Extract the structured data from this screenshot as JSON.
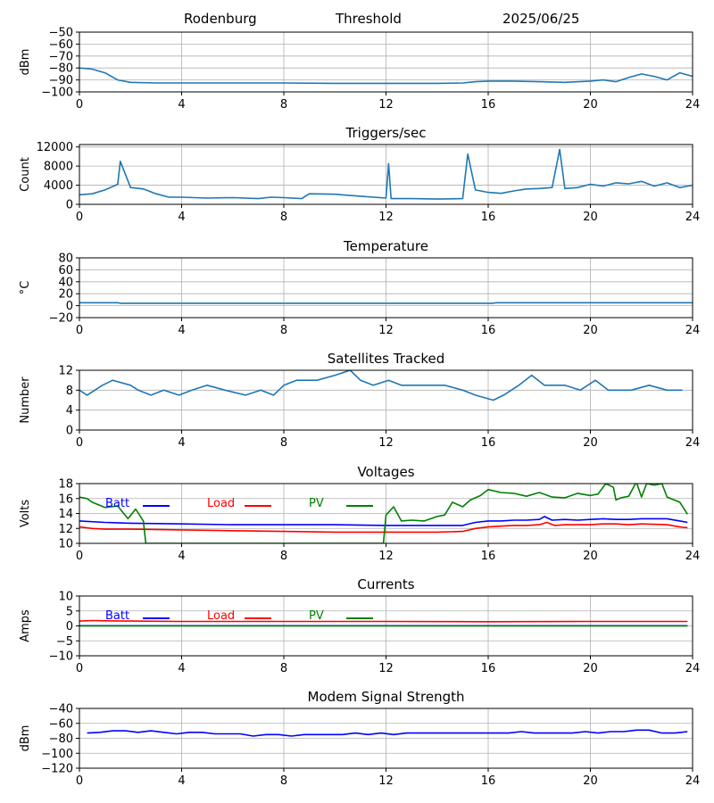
{
  "header": {
    "site": "Rodenburg",
    "mode": "Threshold",
    "date": "2025/06/25"
  },
  "colors": {
    "blue": "#1f77b4",
    "batt": "#0000ff",
    "load": "#ff0000",
    "pv": "#008000",
    "grid": "#b0b0b0"
  },
  "chart_data": [
    {
      "type": "line",
      "title": "",
      "xlabel": "",
      "ylabel": "dBm",
      "xlim": [
        0,
        24
      ],
      "xticks": [
        0,
        4,
        8,
        12,
        16,
        20,
        24
      ],
      "ylim": [
        -100,
        -50
      ],
      "yticks": [
        -100,
        -90,
        -80,
        -70,
        -60,
        -50
      ],
      "grid": true,
      "series": [
        {
          "color": "#1f77b4",
          "x": [
            0,
            0.5,
            1,
            1.5,
            2,
            3,
            4,
            6,
            8,
            10,
            12,
            14,
            15,
            15.5,
            16,
            17,
            18,
            19,
            20,
            20.5,
            21,
            21.5,
            22,
            22.5,
            23,
            23.5,
            24
          ],
          "y": [
            -80,
            -81,
            -84,
            -90,
            -92,
            -92.5,
            -92.5,
            -92.5,
            -92.5,
            -92.8,
            -92.8,
            -92.8,
            -92.5,
            -91.5,
            -91,
            -91,
            -91.5,
            -92,
            -91,
            -90,
            -91.5,
            -88,
            -85,
            -87,
            -90,
            -84,
            -87
          ]
        }
      ]
    },
    {
      "type": "line",
      "title": "Triggers/sec",
      "xlabel": "",
      "ylabel": "Count",
      "xlim": [
        0,
        24
      ],
      "xticks": [
        0,
        4,
        8,
        12,
        16,
        20,
        24
      ],
      "ylim": [
        0,
        12500
      ],
      "yticks": [
        0,
        4000,
        8000,
        12000
      ],
      "grid": true,
      "series": [
        {
          "color": "#1f77b4",
          "x": [
            0,
            0.5,
            1,
            1.5,
            1.6,
            2,
            2.5,
            3,
            3.5,
            4,
            5,
            6,
            7,
            7.5,
            8,
            8.7,
            9,
            10,
            11,
            12,
            12.1,
            12.2,
            13,
            14,
            15,
            15.2,
            15.5,
            16,
            16.5,
            17,
            17.5,
            18,
            18.5,
            18.8,
            19,
            19.5,
            20,
            20.5,
            21,
            21.5,
            22,
            22.5,
            23,
            23.5,
            24
          ],
          "y": [
            2000,
            2200,
            3000,
            4200,
            9000,
            3500,
            3200,
            2200,
            1500,
            1500,
            1300,
            1400,
            1200,
            1500,
            1400,
            1200,
            2200,
            2100,
            1700,
            1300,
            8500,
            1200,
            1200,
            1100,
            1200,
            10500,
            3000,
            2500,
            2300,
            2800,
            3200,
            3300,
            3500,
            11500,
            3300,
            3500,
            4200,
            3800,
            4500,
            4300,
            4800,
            3800,
            4500,
            3500,
            4000
          ]
        }
      ]
    },
    {
      "type": "line",
      "title": "Temperature",
      "xlabel": "",
      "ylabel": "°C",
      "xlim": [
        0,
        24
      ],
      "xticks": [
        0,
        4,
        8,
        12,
        16,
        20,
        24
      ],
      "ylim": [
        -20,
        80
      ],
      "yticks": [
        -20,
        0,
        20,
        40,
        60,
        80
      ],
      "grid": true,
      "series": [
        {
          "color": "#1f77b4",
          "x": [
            0,
            1.5,
            1.6,
            16.2,
            16.3,
            24
          ],
          "y": [
            5,
            5,
            4,
            4,
            5,
            5
          ]
        }
      ]
    },
    {
      "type": "line",
      "title": "Satellites Tracked",
      "xlabel": "",
      "ylabel": "Number",
      "xlim": [
        0,
        24
      ],
      "xticks": [
        0,
        4,
        8,
        12,
        16,
        20,
        24
      ],
      "ylim": [
        0,
        12
      ],
      "yticks": [
        0,
        4,
        8,
        12
      ],
      "grid": true,
      "series": [
        {
          "color": "#1f77b4",
          "x": [
            0,
            0.3,
            0.6,
            0.9,
            1.3,
            2.0,
            2.3,
            2.8,
            3.3,
            3.9,
            4.4,
            5.0,
            5.7,
            6.5,
            7.1,
            7.6,
            8.0,
            8.5,
            9.3,
            10.0,
            10.6,
            11.0,
            11.5,
            12.1,
            12.6,
            13.1,
            14.3,
            15.0,
            15.5,
            16.2,
            16.6,
            17.2,
            17.7,
            18.2,
            19.0,
            19.6,
            20.2,
            20.7,
            21.6,
            22.3,
            23.0,
            23.6
          ],
          "y": [
            8,
            7,
            8,
            9,
            10,
            9,
            8,
            7,
            8,
            7,
            8,
            9,
            8,
            7,
            8,
            7,
            9,
            10,
            10,
            11,
            12,
            10,
            9,
            10,
            9,
            9,
            9,
            8,
            7,
            6,
            7,
            9,
            11,
            9,
            9,
            8,
            10,
            8,
            8,
            9,
            8,
            8
          ]
        }
      ]
    },
    {
      "type": "line",
      "title": "Voltages",
      "xlabel": "",
      "ylabel": "Volts",
      "xlim": [
        0,
        24
      ],
      "xticks": [
        0,
        4,
        8,
        12,
        16,
        20,
        24
      ],
      "ylim": [
        10,
        18
      ],
      "yticks": [
        10,
        12,
        14,
        16,
        18
      ],
      "grid": true,
      "legend": "top-left",
      "series": [
        {
          "name": "Batt",
          "color": "#0000ff",
          "x": [
            0,
            1,
            2,
            4,
            6,
            8,
            10,
            12,
            13,
            14,
            15,
            15.5,
            16,
            16.5,
            17,
            17.5,
            18,
            18.2,
            18.5,
            19,
            19.5,
            20,
            20.5,
            21,
            21.5,
            22,
            22.5,
            23,
            23.5,
            23.8
          ],
          "y": [
            13,
            12.8,
            12.7,
            12.6,
            12.5,
            12.5,
            12.5,
            12.4,
            12.4,
            12.4,
            12.4,
            12.8,
            13,
            13,
            13.1,
            13.1,
            13.2,
            13.6,
            13.1,
            13.2,
            13.1,
            13.2,
            13.3,
            13.2,
            13.2,
            13.3,
            13.3,
            13.3,
            13,
            12.8
          ]
        },
        {
          "name": "Load",
          "color": "#ff0000",
          "x": [
            0,
            0.5,
            1,
            2,
            4,
            6,
            8,
            10,
            12,
            13,
            14,
            15,
            15.5,
            16,
            16.5,
            17,
            17.5,
            18,
            18.3,
            18.6,
            19,
            20,
            20.5,
            21,
            21.5,
            22,
            23,
            23.5,
            23.8
          ],
          "y": [
            12.2,
            12,
            11.9,
            11.9,
            11.8,
            11.7,
            11.6,
            11.5,
            11.5,
            11.5,
            11.5,
            11.6,
            12,
            12.2,
            12.3,
            12.4,
            12.4,
            12.5,
            12.8,
            12.4,
            12.5,
            12.5,
            12.6,
            12.6,
            12.5,
            12.6,
            12.5,
            12.2,
            12.1
          ]
        },
        {
          "name": "PV",
          "color": "#008000",
          "x": [
            0,
            0.3,
            0.5,
            1.0,
            1.5,
            1.9,
            2.2,
            2.5,
            2.6,
            11.9,
            12.0,
            12.3,
            12.6,
            13.0,
            13.5,
            14.0,
            14.3,
            14.6,
            15.0,
            15.3,
            15.7,
            16.0,
            16.5,
            17.0,
            17.5,
            18.0,
            18.5,
            19.0,
            19.5,
            20.0,
            20.3,
            20.6,
            20.9,
            21.0,
            21.2,
            21.5,
            21.8,
            22.0,
            22.2,
            22.5,
            22.8,
            23.0,
            23.5,
            23.8
          ],
          "y": [
            16.2,
            16,
            15.5,
            14.8,
            15,
            13.3,
            14.6,
            13,
            10,
            10,
            13.8,
            14.9,
            13,
            13.1,
            13,
            13.6,
            13.8,
            15.5,
            14.9,
            15.8,
            16.4,
            17.2,
            16.8,
            16.7,
            16.3,
            16.8,
            16.2,
            16.1,
            16.7,
            16.4,
            16.6,
            18,
            17.5,
            15.8,
            16.1,
            16.3,
            18.2,
            16.2,
            18,
            17.8,
            18,
            16.2,
            15.5,
            13.9
          ]
        }
      ]
    },
    {
      "type": "line",
      "title": "Currents",
      "xlabel": "",
      "ylabel": "Amps",
      "xlim": [
        0,
        24
      ],
      "xticks": [
        0,
        4,
        8,
        12,
        16,
        20,
        24
      ],
      "ylim": [
        -10,
        10
      ],
      "yticks": [
        -10,
        -5,
        0,
        5,
        10
      ],
      "grid": true,
      "legend": "top-left",
      "series": [
        {
          "name": "Batt",
          "color": "#0000ff",
          "x": [
            0,
            23.8
          ],
          "y": [
            0.05,
            0.05
          ]
        },
        {
          "name": "Load",
          "color": "#ff0000",
          "x": [
            0,
            0.5,
            1,
            2,
            4,
            8,
            12,
            16,
            20,
            23.8
          ],
          "y": [
            1.6,
            1.8,
            1.7,
            1.6,
            1.5,
            1.5,
            1.5,
            1.4,
            1.5,
            1.5
          ]
        },
        {
          "name": "PV",
          "color": "#008000",
          "x": [
            0,
            23.8
          ],
          "y": [
            0,
            0
          ]
        }
      ]
    },
    {
      "type": "line",
      "title": "Modem Signal Strength",
      "xlabel": "",
      "ylabel": "dBm",
      "xlim": [
        0,
        24
      ],
      "xticks": [
        0,
        4,
        8,
        12,
        16,
        20,
        24
      ],
      "ylim": [
        -120,
        -40
      ],
      "yticks": [
        -120,
        -100,
        -80,
        -60,
        -40
      ],
      "grid": true,
      "series": [
        {
          "color": "#0000ff",
          "x": [
            0.3,
            0.8,
            1.3,
            1.8,
            2.3,
            2.8,
            3.3,
            3.8,
            4.3,
            4.8,
            5.3,
            5.8,
            6.3,
            6.8,
            7.3,
            7.8,
            8.3,
            8.8,
            9.3,
            9.8,
            10.3,
            10.8,
            11.3,
            11.8,
            12.3,
            12.8,
            13.3,
            13.8,
            14.3,
            14.8,
            15.3,
            15.8,
            16.3,
            16.8,
            17.3,
            17.8,
            18.3,
            18.8,
            19.3,
            19.8,
            20.3,
            20.8,
            21.3,
            21.8,
            22.3,
            22.8,
            23.3,
            23.8
          ],
          "y": [
            -73,
            -72,
            -70,
            -70,
            -72,
            -70,
            -72,
            -74,
            -72,
            -72,
            -74,
            -74,
            -74,
            -77,
            -75,
            -75,
            -77,
            -75,
            -75,
            -75,
            -75,
            -73,
            -75,
            -73,
            -75,
            -73,
            -73,
            -73,
            -73,
            -73,
            -73,
            -73,
            -73,
            -73,
            -71,
            -73,
            -73,
            -73,
            -73,
            -71,
            -73,
            -71,
            -71,
            -69,
            -69,
            -73,
            -73,
            -71
          ]
        }
      ]
    }
  ]
}
